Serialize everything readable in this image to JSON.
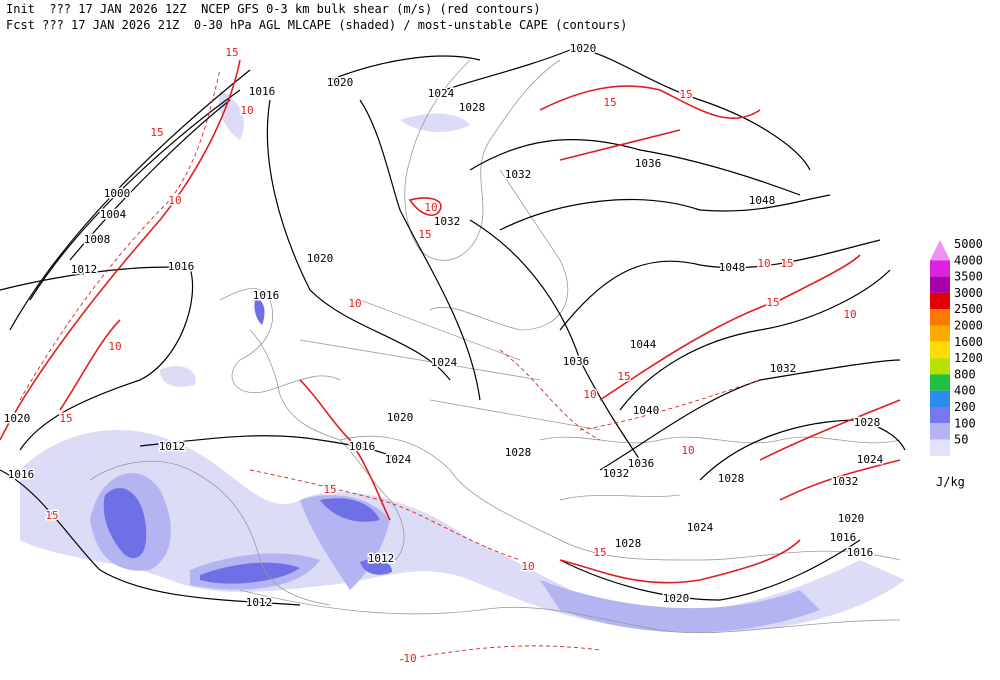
{
  "header": {
    "line1": "Init  ??? 17 JAN 2026 12Z  NCEP GFS 0-3 km bulk shear (m/s) (red contours)",
    "line2": "Fcst ??? 17 JAN 2026 21Z  0-30 hPa AGL MLCAPE (shaded) / most-unstable CAPE (contours)"
  },
  "pressure_labels": [
    1020,
    1016,
    1020,
    1024,
    1028,
    1036,
    1032,
    1048,
    1000,
    1004,
    1008,
    1012,
    1016,
    1020,
    1032,
    1048,
    1016,
    1044,
    1024,
    1036,
    1032,
    1040,
    1020,
    1020,
    1028,
    1012,
    1016,
    1024,
    1028,
    1036,
    1032,
    1028,
    1024,
    1032,
    1016,
    1020,
    1024,
    1016,
    1012,
    1028,
    1016,
    1012,
    1020
  ],
  "shear_labels": [
    15,
    15,
    10,
    10,
    15,
    10,
    10,
    15,
    15,
    15,
    10,
    15,
    15,
    10,
    15,
    10,
    10,
    15,
    15,
    10,
    10,
    15,
    10
  ],
  "legend": {
    "levels": [
      5000,
      4000,
      3500,
      3000,
      2500,
      2000,
      1600,
      1200,
      800,
      400,
      200,
      100,
      50
    ],
    "colors": [
      "#f090f0",
      "#e020e0",
      "#a800a8",
      "#e00000",
      "#ff7800",
      "#ffaa00",
      "#ffdd00",
      "#b8e000",
      "#20c040",
      "#2c8cf0",
      "#7878f0",
      "#b4b4f4",
      "#e2e2fa"
    ],
    "unit": "J/kg"
  }
}
